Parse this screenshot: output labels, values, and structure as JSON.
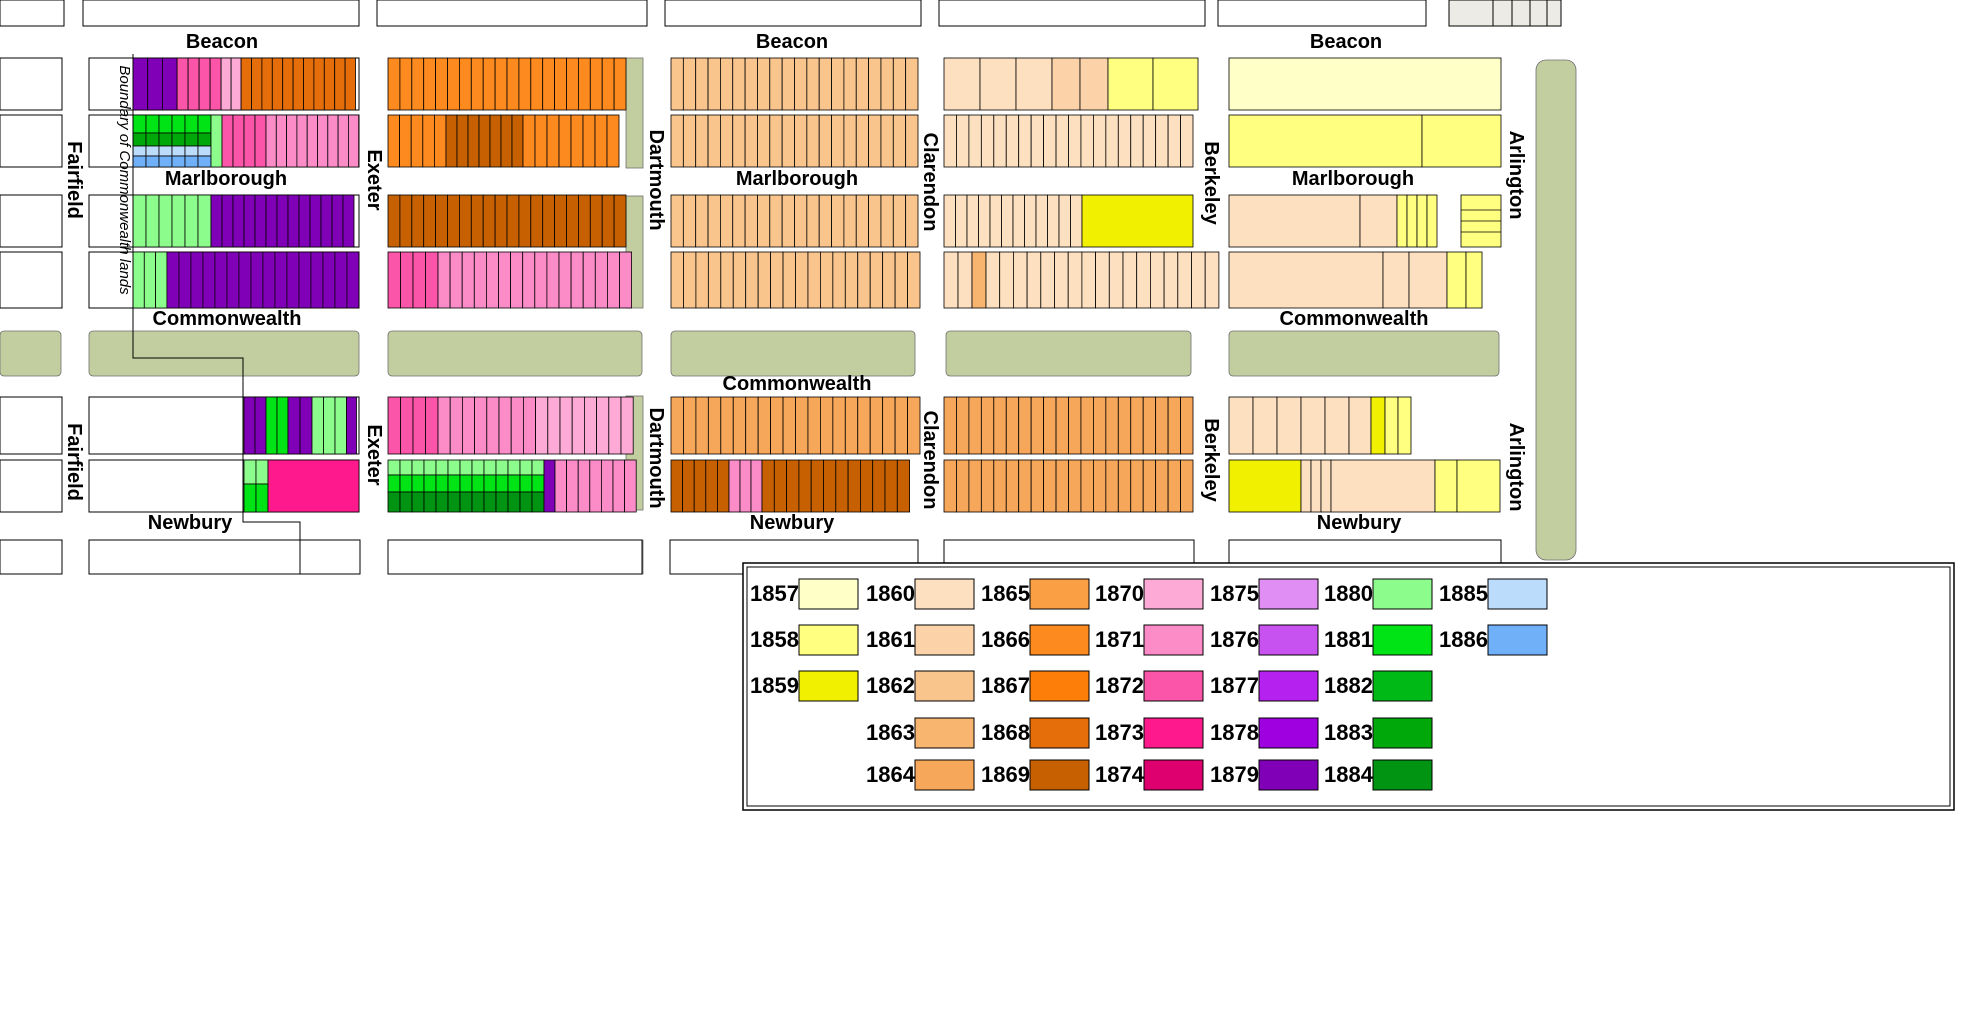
{
  "streets": {
    "beacon": "Beacon",
    "marlborough": "Marlborough",
    "commonwealth": "Commonwealth",
    "newbury": "Newbury",
    "fairfield": "Fairfield",
    "exeter": "Exeter",
    "dartmouth": "Dartmouth",
    "clarendon": "Clarendon",
    "berkeley": "Berkeley",
    "arlington": "Arlington"
  },
  "boundary_label": "Boundary of Commonwealth lands",
  "colors": {
    "mall": "#c3cea0",
    "outline": "#000000"
  },
  "legend": {
    "columns": [
      [
        {
          "year": "1857",
          "color": "#ffffc8"
        },
        {
          "year": "1858",
          "color": "#ffff80"
        },
        {
          "year": "1859",
          "color": "#f0f000"
        }
      ],
      [
        {
          "year": "1860",
          "color": "#fde0bf"
        },
        {
          "year": "1861",
          "color": "#fcd3a8"
        },
        {
          "year": "1862",
          "color": "#f9c58d"
        },
        {
          "year": "1863",
          "color": "#f8b56f"
        },
        {
          "year": "1864",
          "color": "#f6a75a"
        }
      ],
      [
        {
          "year": "1865",
          "color": "#fb9f45"
        },
        {
          "year": "1866",
          "color": "#fd8a1e"
        },
        {
          "year": "1867",
          "color": "#fe7e0a"
        },
        {
          "year": "1868",
          "color": "#e66e0a"
        },
        {
          "year": "1869",
          "color": "#c66000"
        }
      ],
      [
        {
          "year": "1870",
          "color": "#fdabd6"
        },
        {
          "year": "1871",
          "color": "#fb8cc8"
        },
        {
          "year": "1872",
          "color": "#fa55a8"
        },
        {
          "year": "1873",
          "color": "#fe1a8c"
        },
        {
          "year": "1874",
          "color": "#de006e"
        }
      ],
      [
        {
          "year": "1875",
          "color": "#e08df4"
        },
        {
          "year": "1876",
          "color": "#c752f0"
        },
        {
          "year": "1877",
          "color": "#b522f0"
        },
        {
          "year": "1878",
          "color": "#9e00e0"
        },
        {
          "year": "1879",
          "color": "#8000b8"
        }
      ],
      [
        {
          "year": "1880",
          "color": "#8cfc8c"
        },
        {
          "year": "1881",
          "color": "#00e416"
        },
        {
          "year": "1882",
          "color": "#00b816"
        },
        {
          "year": "1883",
          "color": "#00a80a"
        },
        {
          "year": "1884",
          "color": "#009412"
        }
      ],
      [
        {
          "year": "1885",
          "color": "#bcdcfc"
        },
        {
          "year": "1886",
          "color": "#70b0f8"
        }
      ]
    ]
  }
}
